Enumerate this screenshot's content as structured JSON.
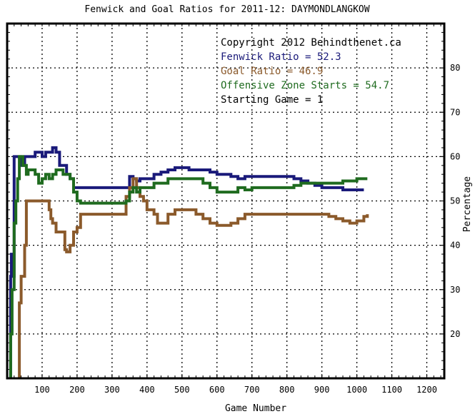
{
  "chart_data": {
    "type": "line",
    "title": "Fenwick and Goal Ratios for 2011-12: DAYMONDLANGKOW",
    "xlabel": "Game Number",
    "ylabel": "Percentage",
    "xlim": [
      0,
      1250
    ],
    "ylim": [
      10,
      90
    ],
    "x_ticks": [
      100,
      200,
      300,
      400,
      500,
      600,
      700,
      800,
      900,
      1000,
      1100,
      1200
    ],
    "y_ticks": [
      20,
      30,
      40,
      50,
      60,
      70,
      80
    ],
    "grid": true,
    "annotations": [
      {
        "text": "Copyright 2012 Behindthenet.ca",
        "color": "#000000"
      },
      {
        "text": "Fenwick Ratio = 52.3",
        "color": "#1a1a7a"
      },
      {
        "text": "Goal Ratio = 46.9",
        "color": "#8b5a2b"
      },
      {
        "text": "Offensive Zone Starts = 54.7",
        "color": "#1f6b1f"
      },
      {
        "text": "Starting Game = 1",
        "color": "#000000"
      }
    ],
    "series": [
      {
        "color": "#1a1a7a",
        "points": [
          [
            10,
            10
          ],
          [
            10,
            33
          ],
          [
            12,
            38
          ],
          [
            14,
            35
          ],
          [
            16,
            33
          ],
          [
            20,
            60
          ],
          [
            30,
            60
          ],
          [
            40,
            58
          ],
          [
            50,
            60
          ],
          [
            60,
            60
          ],
          [
            70,
            60
          ],
          [
            80,
            61
          ],
          [
            90,
            61
          ],
          [
            100,
            60
          ],
          [
            110,
            61
          ],
          [
            120,
            61
          ],
          [
            130,
            62
          ],
          [
            140,
            61
          ],
          [
            150,
            58
          ],
          [
            160,
            58
          ],
          [
            170,
            56
          ],
          [
            180,
            55
          ],
          [
            190,
            53
          ],
          [
            200,
            53
          ],
          [
            220,
            53
          ],
          [
            250,
            53
          ],
          [
            280,
            53
          ],
          [
            300,
            53
          ],
          [
            320,
            53
          ],
          [
            340,
            53
          ],
          [
            350,
            55.5
          ],
          [
            360,
            55
          ],
          [
            370,
            54.5
          ],
          [
            380,
            55
          ],
          [
            400,
            55
          ],
          [
            420,
            56
          ],
          [
            440,
            56.5
          ],
          [
            460,
            57
          ],
          [
            480,
            57.5
          ],
          [
            500,
            57.5
          ],
          [
            520,
            57
          ],
          [
            540,
            57
          ],
          [
            560,
            57
          ],
          [
            580,
            56.5
          ],
          [
            600,
            56
          ],
          [
            620,
            56
          ],
          [
            640,
            55.5
          ],
          [
            660,
            55
          ],
          [
            680,
            55.5
          ],
          [
            700,
            55.5
          ],
          [
            720,
            55.5
          ],
          [
            740,
            55.5
          ],
          [
            760,
            55.5
          ],
          [
            780,
            55.5
          ],
          [
            800,
            55.5
          ],
          [
            820,
            55
          ],
          [
            840,
            54.5
          ],
          [
            860,
            54
          ],
          [
            880,
            53.5
          ],
          [
            900,
            53
          ],
          [
            920,
            53
          ],
          [
            940,
            53
          ],
          [
            960,
            52.5
          ],
          [
            980,
            52.5
          ],
          [
            1000,
            52.5
          ],
          [
            1020,
            52.5
          ]
        ]
      },
      {
        "color": "#8b5a2b",
        "points": [
          [
            35,
            10
          ],
          [
            35,
            27
          ],
          [
            40,
            33
          ],
          [
            45,
            33
          ],
          [
            50,
            40
          ],
          [
            55,
            50
          ],
          [
            60,
            50
          ],
          [
            80,
            50
          ],
          [
            100,
            50
          ],
          [
            110,
            50
          ],
          [
            120,
            48
          ],
          [
            125,
            46
          ],
          [
            130,
            45
          ],
          [
            140,
            43
          ],
          [
            150,
            43
          ],
          [
            160,
            43
          ],
          [
            165,
            39
          ],
          [
            170,
            38.5
          ],
          [
            180,
            40
          ],
          [
            190,
            43
          ],
          [
            200,
            44
          ],
          [
            210,
            47
          ],
          [
            250,
            47
          ],
          [
            300,
            47
          ],
          [
            320,
            47
          ],
          [
            340,
            51
          ],
          [
            350,
            53
          ],
          [
            360,
            55
          ],
          [
            370,
            53
          ],
          [
            380,
            51
          ],
          [
            390,
            50
          ],
          [
            400,
            48
          ],
          [
            420,
            47
          ],
          [
            430,
            45
          ],
          [
            440,
            45
          ],
          [
            460,
            47
          ],
          [
            480,
            48
          ],
          [
            500,
            48
          ],
          [
            520,
            48
          ],
          [
            540,
            47
          ],
          [
            560,
            46
          ],
          [
            580,
            45
          ],
          [
            600,
            44.5
          ],
          [
            620,
            44.5
          ],
          [
            640,
            45
          ],
          [
            660,
            46
          ],
          [
            680,
            47
          ],
          [
            700,
            47
          ],
          [
            720,
            47
          ],
          [
            740,
            47
          ],
          [
            760,
            47
          ],
          [
            780,
            47
          ],
          [
            800,
            47
          ],
          [
            820,
            47
          ],
          [
            840,
            47
          ],
          [
            860,
            47
          ],
          [
            880,
            47
          ],
          [
            900,
            47
          ],
          [
            920,
            46.5
          ],
          [
            940,
            46
          ],
          [
            960,
            45.5
          ],
          [
            980,
            45
          ],
          [
            1000,
            45.5
          ],
          [
            1020,
            46.5
          ],
          [
            1030,
            47
          ]
        ]
      },
      {
        "color": "#1f6b1f",
        "points": [
          [
            10,
            10
          ],
          [
            10,
            20
          ],
          [
            14,
            30
          ],
          [
            20,
            45
          ],
          [
            25,
            50
          ],
          [
            30,
            55
          ],
          [
            35,
            60
          ],
          [
            40,
            60
          ],
          [
            45,
            58
          ],
          [
            50,
            58
          ],
          [
            55,
            56
          ],
          [
            60,
            57
          ],
          [
            70,
            57
          ],
          [
            80,
            56
          ],
          [
            90,
            54
          ],
          [
            100,
            55
          ],
          [
            110,
            56
          ],
          [
            120,
            55
          ],
          [
            130,
            56
          ],
          [
            140,
            57
          ],
          [
            150,
            57
          ],
          [
            160,
            56
          ],
          [
            170,
            56
          ],
          [
            180,
            55
          ],
          [
            190,
            52
          ],
          [
            200,
            50
          ],
          [
            210,
            49.5
          ],
          [
            250,
            49.5
          ],
          [
            300,
            49.5
          ],
          [
            330,
            49.5
          ],
          [
            340,
            50
          ],
          [
            350,
            52
          ],
          [
            360,
            53
          ],
          [
            370,
            52
          ],
          [
            380,
            53
          ],
          [
            390,
            53
          ],
          [
            400,
            53
          ],
          [
            420,
            54
          ],
          [
            440,
            54
          ],
          [
            460,
            55
          ],
          [
            480,
            55
          ],
          [
            500,
            55
          ],
          [
            520,
            55
          ],
          [
            540,
            55
          ],
          [
            560,
            54
          ],
          [
            580,
            53
          ],
          [
            600,
            52
          ],
          [
            620,
            52
          ],
          [
            640,
            52
          ],
          [
            660,
            53
          ],
          [
            680,
            52.5
          ],
          [
            700,
            53
          ],
          [
            720,
            53
          ],
          [
            740,
            53
          ],
          [
            760,
            53
          ],
          [
            780,
            53
          ],
          [
            800,
            53
          ],
          [
            820,
            53.5
          ],
          [
            840,
            54
          ],
          [
            860,
            54
          ],
          [
            880,
            54
          ],
          [
            900,
            54
          ],
          [
            920,
            54
          ],
          [
            940,
            54
          ],
          [
            960,
            54.5
          ],
          [
            980,
            54.5
          ],
          [
            1000,
            55
          ],
          [
            1020,
            55
          ],
          [
            1030,
            55
          ]
        ]
      }
    ]
  }
}
